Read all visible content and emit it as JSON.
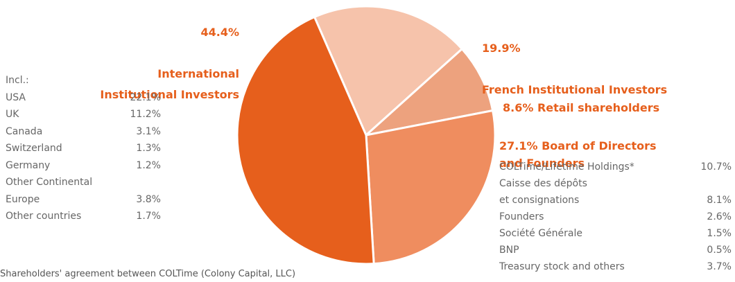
{
  "chart_data": {
    "type": "pie",
    "categories": [
      "French Institutional Investors",
      "Retail shareholders",
      "Board of Directors\nand Founders",
      "International\nInstitutional Investors"
    ],
    "values": [
      19.9,
      8.6,
      27.1,
      44.4
    ],
    "value_labels": [
      "19.9%",
      "8.6%",
      "27.1%",
      "44.4%"
    ],
    "colors": [
      "#f6c3ab",
      "#eda27e",
      "#ef8d5f",
      "#e65f1c"
    ],
    "breakdowns": [
      {
        "heading": "Incl.:",
        "rows": [
          [
            "USA",
            "22.1%"
          ],
          [
            "UK",
            "11.2%"
          ],
          [
            "Canada",
            "3.1%"
          ],
          [
            "Switzerland",
            "1.3%"
          ],
          [
            "Germany",
            "1.2%"
          ],
          [
            "Other Continental\nEurope",
            "3.8%"
          ],
          [
            "Other countries",
            "1.7%"
          ]
        ]
      },
      {
        "rows": [
          [
            "COLTime/Lifetime Holdings*",
            "10.7%"
          ],
          [
            "Caisse des dépôts\net consignations",
            "8.1%"
          ],
          [
            "Founders",
            "2.6%"
          ],
          [
            "Société Générale",
            "1.5%"
          ],
          [
            "BNP",
            "0.5%"
          ],
          [
            "Treasury stock and others",
            "3.7%"
          ]
        ]
      }
    ],
    "footnote": "Shareholders' agreement between COLTime (Colony Capital, LLC)"
  }
}
